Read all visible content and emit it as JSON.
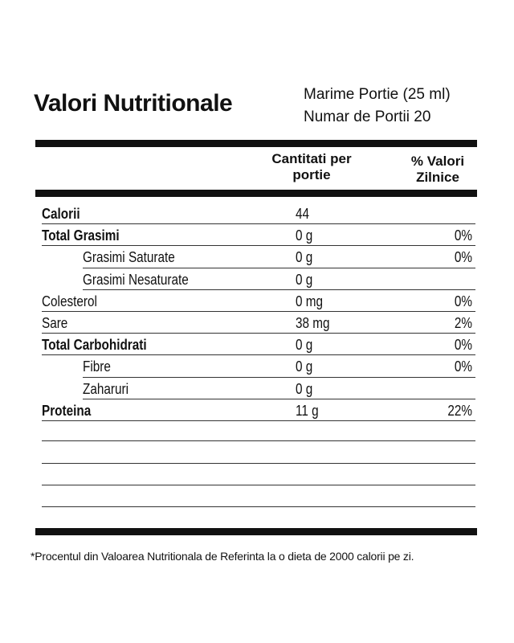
{
  "title": "Valori Nutritionale",
  "serving": {
    "size": "Marime Portie (25 ml)",
    "count": "Numar de Portii 20"
  },
  "headers": {
    "amount_line1": "Cantitati per",
    "amount_line2": "portie",
    "daily_line1": "% Valori",
    "daily_line2": "Zilnice"
  },
  "rows": [
    {
      "label": "Calorii",
      "amount": "44",
      "daily": "",
      "bold": true,
      "indent": false
    },
    {
      "label": "Total Grasimi",
      "amount": "0 g",
      "daily": "0%",
      "bold": true,
      "indent": false
    },
    {
      "label": "Grasimi Saturate",
      "amount": "0 g",
      "daily": "0%",
      "bold": false,
      "indent": true
    },
    {
      "label": "Grasimi Nesaturate",
      "amount": "0 g",
      "daily": "",
      "bold": false,
      "indent": true
    },
    {
      "label": "Colesterol",
      "amount": "0 mg",
      "daily": "0%",
      "bold": false,
      "indent": false
    },
    {
      "label": "Sare",
      "amount": "38 mg",
      "daily": "2%",
      "bold": false,
      "indent": false
    },
    {
      "label": "Total Carbohidrati",
      "amount": "0 g",
      "daily": "0%",
      "bold": true,
      "indent": false
    },
    {
      "label": "Fibre",
      "amount": "0 g",
      "daily": "0%",
      "bold": false,
      "indent": true
    },
    {
      "label": "Zaharuri",
      "amount": "0 g",
      "daily": "",
      "bold": false,
      "indent": true
    },
    {
      "label": "Proteina",
      "amount": "11 g",
      "daily": "22%",
      "bold": true,
      "indent": false
    }
  ],
  "footnote": "*Procentul din Valoarea Nutritionala de Referinta la o dieta de 2000 calorii pe zi."
}
